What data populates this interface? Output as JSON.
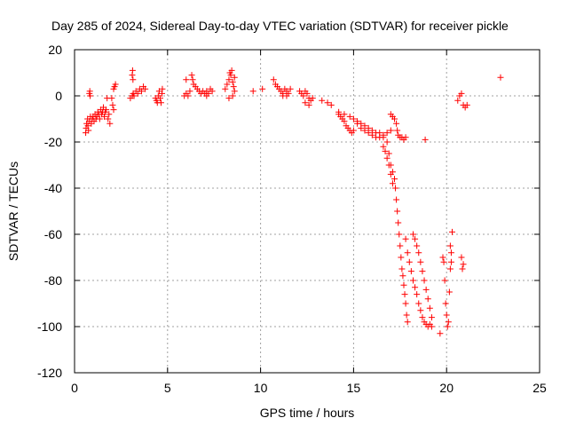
{
  "chart_data": {
    "type": "scatter",
    "title": "Day 285 of 2024, Sidereal Day-to-day VTEC variation (SDTVAR) for receiver pickle",
    "xlabel": "GPS time / hours",
    "ylabel": "SDTVAR / TECUs",
    "xlim": [
      0,
      25
    ],
    "ylim": [
      -120,
      20
    ],
    "xticks": [
      0,
      5,
      10,
      15,
      20,
      25
    ],
    "yticks": [
      -120,
      -100,
      -80,
      -60,
      -40,
      -20,
      0,
      20
    ],
    "grid": true,
    "marker": "+",
    "color": "#ff0000",
    "series": [
      {
        "name": "SDTVAR",
        "points": [
          [
            0.6,
            -16
          ],
          [
            0.62,
            -14
          ],
          [
            0.65,
            -12
          ],
          [
            0.7,
            -10
          ],
          [
            0.72,
            -13
          ],
          [
            0.75,
            -15
          ],
          [
            0.8,
            -11
          ],
          [
            0.85,
            -9
          ],
          [
            0.9,
            -12
          ],
          [
            0.95,
            -10
          ],
          [
            1.0,
            -9
          ],
          [
            1.05,
            -11
          ],
          [
            1.1,
            -8
          ],
          [
            1.15,
            -10
          ],
          [
            1.2,
            -9
          ],
          [
            1.25,
            -7
          ],
          [
            1.3,
            -8
          ],
          [
            1.35,
            -10
          ],
          [
            1.4,
            -6
          ],
          [
            1.45,
            -8
          ],
          [
            1.5,
            -7
          ],
          [
            1.55,
            -5
          ],
          [
            1.6,
            -9
          ],
          [
            1.65,
            -7
          ],
          [
            1.7,
            -6
          ],
          [
            0.8,
            1
          ],
          [
            0.82,
            2
          ],
          [
            0.84,
            0
          ],
          [
            1.8,
            -10
          ],
          [
            1.85,
            -8
          ],
          [
            1.9,
            -12
          ],
          [
            1.75,
            -1
          ],
          [
            2.0,
            -1
          ],
          [
            2.05,
            -4
          ],
          [
            2.1,
            -6
          ],
          [
            2.1,
            3
          ],
          [
            2.15,
            4
          ],
          [
            2.2,
            5
          ],
          [
            3.0,
            -1
          ],
          [
            3.1,
            0
          ],
          [
            3.15,
            1
          ],
          [
            3.2,
            0
          ],
          [
            3.3,
            2
          ],
          [
            3.4,
            1
          ],
          [
            3.5,
            3
          ],
          [
            3.6,
            2
          ],
          [
            3.7,
            4
          ],
          [
            3.8,
            3
          ],
          [
            3.1,
            9
          ],
          [
            3.12,
            11
          ],
          [
            3.14,
            7
          ],
          [
            4.35,
            -1
          ],
          [
            4.4,
            -2
          ],
          [
            4.45,
            -3
          ],
          [
            4.5,
            0
          ],
          [
            4.55,
            2
          ],
          [
            4.6,
            -1
          ],
          [
            4.65,
            -3
          ],
          [
            4.7,
            1
          ],
          [
            4.72,
            3
          ],
          [
            5.9,
            0
          ],
          [
            6.0,
            1
          ],
          [
            6.1,
            0
          ],
          [
            6.2,
            2
          ],
          [
            6.0,
            7
          ],
          [
            6.3,
            9
          ],
          [
            6.35,
            7
          ],
          [
            6.4,
            5
          ],
          [
            6.5,
            4
          ],
          [
            6.6,
            3
          ],
          [
            6.7,
            2
          ],
          [
            6.8,
            1
          ],
          [
            6.9,
            2
          ],
          [
            7.0,
            1
          ],
          [
            7.1,
            2
          ],
          [
            7.2,
            1
          ],
          [
            7.3,
            3
          ],
          [
            7.4,
            2
          ],
          [
            7.1,
            0
          ],
          [
            8.1,
            3
          ],
          [
            8.2,
            5
          ],
          [
            8.3,
            7
          ],
          [
            8.35,
            10
          ],
          [
            8.4,
            9
          ],
          [
            8.45,
            11
          ],
          [
            8.5,
            6
          ],
          [
            8.55,
            4
          ],
          [
            8.6,
            2
          ],
          [
            8.3,
            -1
          ],
          [
            8.5,
            0
          ],
          [
            8.6,
            8
          ],
          [
            9.6,
            2
          ],
          [
            10.1,
            3
          ],
          [
            10.7,
            7
          ],
          [
            10.8,
            5
          ],
          [
            10.9,
            4
          ],
          [
            11.0,
            3
          ],
          [
            11.1,
            2
          ],
          [
            11.2,
            1
          ],
          [
            11.3,
            3
          ],
          [
            11.4,
            2
          ],
          [
            11.5,
            1
          ],
          [
            11.6,
            3
          ],
          [
            11.2,
            0
          ],
          [
            11.4,
            0
          ],
          [
            12.1,
            2
          ],
          [
            12.2,
            1
          ],
          [
            12.3,
            0
          ],
          [
            12.4,
            2
          ],
          [
            12.5,
            1
          ],
          [
            12.6,
            -1
          ],
          [
            12.7,
            -2
          ],
          [
            12.8,
            -1
          ],
          [
            12.4,
            -3
          ],
          [
            12.6,
            -4
          ],
          [
            13.3,
            -2
          ],
          [
            13.6,
            -3
          ],
          [
            13.8,
            -4
          ],
          [
            14.2,
            -8
          ],
          [
            14.3,
            -9
          ],
          [
            14.4,
            -10
          ],
          [
            14.5,
            -11
          ],
          [
            14.6,
            -13
          ],
          [
            14.7,
            -14
          ],
          [
            14.8,
            -15
          ],
          [
            14.9,
            -16
          ],
          [
            15.0,
            -15
          ],
          [
            14.2,
            -7
          ],
          [
            14.5,
            -8
          ],
          [
            14.8,
            -9
          ],
          [
            15.0,
            -10
          ],
          [
            15.2,
            -11
          ],
          [
            15.4,
            -12
          ],
          [
            15.6,
            -13
          ],
          [
            15.8,
            -14
          ],
          [
            16.0,
            -15
          ],
          [
            16.2,
            -16
          ],
          [
            15.2,
            -12
          ],
          [
            15.4,
            -14
          ],
          [
            15.6,
            -15
          ],
          [
            15.8,
            -16
          ],
          [
            16.0,
            -17
          ],
          [
            16.2,
            -18
          ],
          [
            16.4,
            -18
          ],
          [
            16.6,
            -17
          ],
          [
            16.8,
            -16
          ],
          [
            17.0,
            -15
          ],
          [
            16.4,
            -16
          ],
          [
            16.6,
            -18
          ],
          [
            16.8,
            -20
          ],
          [
            16.9,
            -25
          ],
          [
            17.0,
            -30
          ],
          [
            17.1,
            -33
          ],
          [
            17.2,
            -36
          ],
          [
            17.25,
            -40
          ],
          [
            17.3,
            -45
          ],
          [
            17.35,
            -50
          ],
          [
            17.4,
            -55
          ],
          [
            17.45,
            -60
          ],
          [
            17.5,
            -65
          ],
          [
            17.55,
            -70
          ],
          [
            17.6,
            -75
          ],
          [
            17.65,
            -78
          ],
          [
            17.7,
            -82
          ],
          [
            17.75,
            -86
          ],
          [
            17.8,
            -90
          ],
          [
            17.85,
            -95
          ],
          [
            17.9,
            -98
          ],
          [
            16.6,
            -22
          ],
          [
            16.7,
            -24
          ],
          [
            16.8,
            -27
          ],
          [
            16.9,
            -30
          ],
          [
            17.0,
            -34
          ],
          [
            17.1,
            -38
          ],
          [
            17.0,
            -8
          ],
          [
            17.1,
            -9
          ],
          [
            17.2,
            -10
          ],
          [
            17.3,
            -12
          ],
          [
            17.35,
            -15
          ],
          [
            17.4,
            -17
          ],
          [
            17.5,
            -18
          ],
          [
            17.6,
            -18
          ],
          [
            17.7,
            -19
          ],
          [
            17.8,
            -18
          ],
          [
            17.8,
            -62
          ],
          [
            17.9,
            -68
          ],
          [
            18.0,
            -72
          ],
          [
            18.1,
            -76
          ],
          [
            18.2,
            -80
          ],
          [
            18.3,
            -83
          ],
          [
            18.4,
            -86
          ],
          [
            18.5,
            -90
          ],
          [
            18.6,
            -93
          ],
          [
            18.7,
            -96
          ],
          [
            18.8,
            -98
          ],
          [
            18.9,
            -99
          ],
          [
            19.0,
            -100
          ],
          [
            19.1,
            -99
          ],
          [
            19.2,
            -100
          ],
          [
            18.2,
            -60
          ],
          [
            18.3,
            -62
          ],
          [
            18.4,
            -65
          ],
          [
            18.5,
            -68
          ],
          [
            18.6,
            -72
          ],
          [
            18.7,
            -76
          ],
          [
            18.8,
            -80
          ],
          [
            18.9,
            -84
          ],
          [
            19.0,
            -88
          ],
          [
            19.1,
            -92
          ],
          [
            19.2,
            -96
          ],
          [
            18.85,
            -19
          ],
          [
            19.65,
            -103
          ],
          [
            19.8,
            -70
          ],
          [
            19.85,
            -72
          ],
          [
            19.9,
            -80
          ],
          [
            19.95,
            -90
          ],
          [
            20.0,
            -95
          ],
          [
            20.05,
            -100
          ],
          [
            20.1,
            -98
          ],
          [
            20.15,
            -85
          ],
          [
            20.2,
            -75
          ],
          [
            20.25,
            -68
          ],
          [
            20.3,
            -59
          ],
          [
            20.2,
            -65
          ],
          [
            20.25,
            -72
          ],
          [
            20.8,
            -70
          ],
          [
            20.85,
            -75
          ],
          [
            20.9,
            -73
          ],
          [
            20.6,
            -2
          ],
          [
            20.7,
            0
          ],
          [
            20.8,
            1
          ],
          [
            20.9,
            -4
          ],
          [
            21.0,
            -5
          ],
          [
            21.1,
            -4
          ],
          [
            22.9,
            8
          ]
        ]
      }
    ]
  }
}
